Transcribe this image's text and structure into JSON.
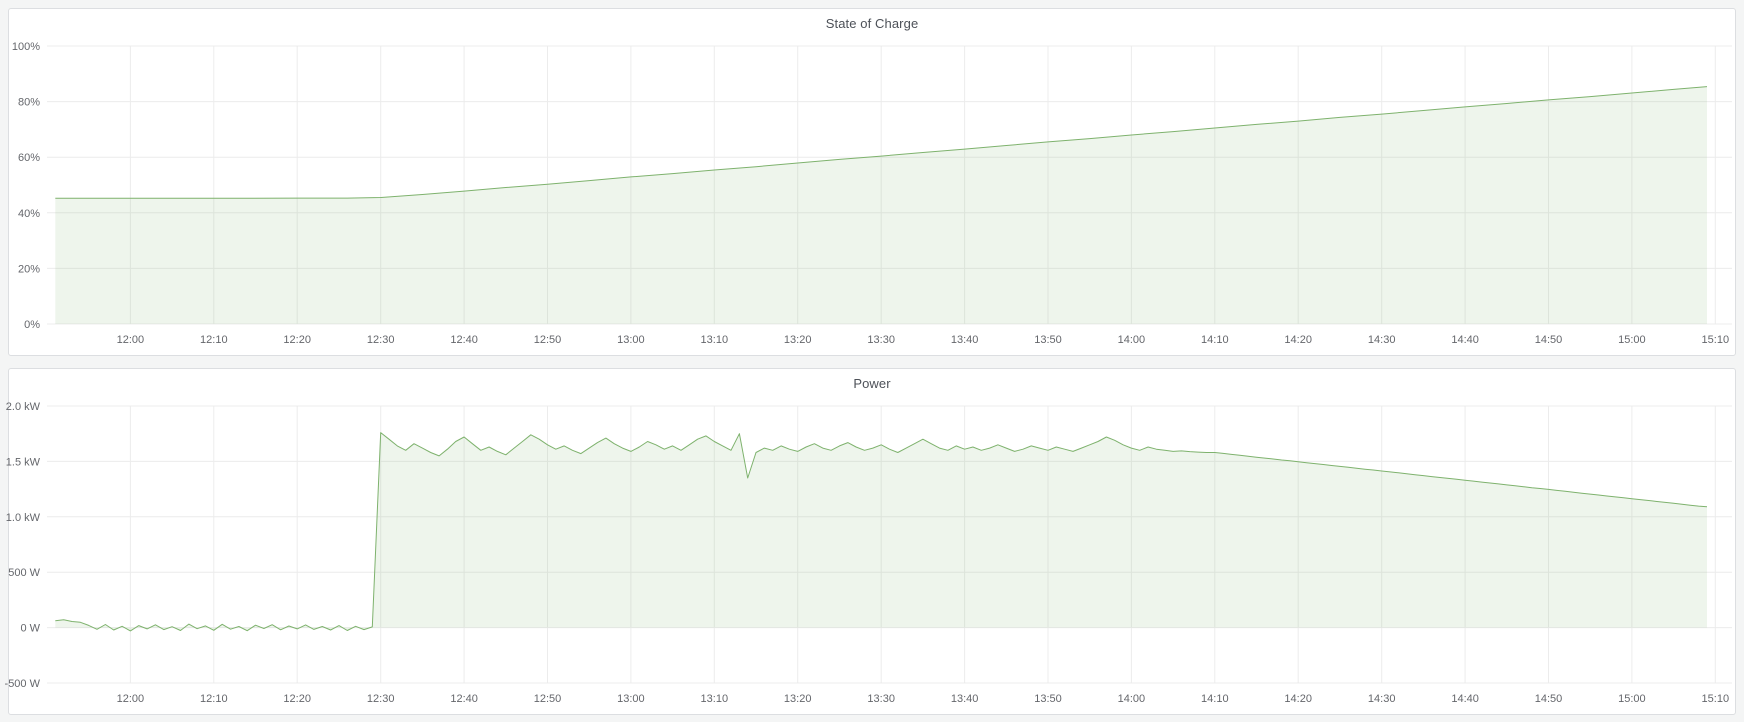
{
  "page": {
    "background_color": "#f4f5f5",
    "panel_background": "#ffffff",
    "panel_border_color": "#dcdee1",
    "accent_color": "#7eb26d"
  },
  "chart_data": [
    {
      "type": "area",
      "title": "State of Charge",
      "legend_position": "none",
      "grid": "on",
      "ylabel": "",
      "xlabel": "",
      "ylim": [
        0,
        100
      ],
      "xlim_minutes": [
        -10,
        192
      ],
      "grid_color": "#ececec",
      "tick_color": "#64666b",
      "y_ticks": {
        "labels": [
          "100%",
          "80%",
          "60%",
          "40%",
          "20%",
          "0%"
        ],
        "values": [
          100,
          80,
          60,
          40,
          20,
          0
        ]
      },
      "x_ticks": {
        "labels": [
          "12:00",
          "12:10",
          "12:20",
          "12:30",
          "12:40",
          "12:50",
          "13:00",
          "13:10",
          "13:20",
          "13:30",
          "13:40",
          "13:50",
          "14:00",
          "14:10",
          "14:20",
          "14:30",
          "14:40",
          "14:50",
          "15:00",
          "15:10"
        ],
        "minutes": [
          0,
          10,
          20,
          30,
          40,
          50,
          60,
          70,
          80,
          90,
          100,
          110,
          120,
          130,
          140,
          150,
          160,
          170,
          180,
          190
        ]
      },
      "series": [
        {
          "name": "state-of-charge",
          "unit": "%",
          "color": "#7eb26d",
          "fill_color": "rgba(126,178,109,0.13)",
          "fill_to": 0,
          "points": {
            "t": [
              -9,
              0,
              10,
              20,
              26,
              30,
              35,
              40,
              45,
              50,
              55,
              60,
              65,
              70,
              75,
              80,
              85,
              90,
              95,
              100,
              105,
              110,
              115,
              120,
              125,
              130,
              135,
              140,
              145,
              150,
              155,
              160,
              165,
              170,
              175,
              180,
              185,
              189
            ],
            "v": [
              45.2,
              45.2,
              45.2,
              45.3,
              45.3,
              45.5,
              46.6,
              47.8,
              49.1,
              50.3,
              51.6,
              52.9,
              54.1,
              55.4,
              56.6,
              57.9,
              59.2,
              60.4,
              61.7,
              62.9,
              64.2,
              65.5,
              66.7,
              68.0,
              69.2,
              70.5,
              71.8,
              73.0,
              74.3,
              75.5,
              76.8,
              78.1,
              79.3,
              80.6,
              81.8,
              83.1,
              84.4,
              85.4
            ]
          }
        }
      ]
    },
    {
      "type": "area",
      "title": "Power",
      "legend_position": "none",
      "grid": "on",
      "ylabel": "",
      "xlabel": "",
      "ylim": [
        -500,
        2000
      ],
      "xlim_minutes": [
        -10,
        192
      ],
      "grid_color": "#ececec",
      "tick_color": "#64666b",
      "y_ticks": {
        "labels": [
          "2.0 kW",
          "1.5 kW",
          "1.0 kW",
          "500 W",
          "0 W",
          "-500 W"
        ],
        "values": [
          2000,
          1500,
          1000,
          500,
          0,
          -500
        ]
      },
      "x_ticks": {
        "labels": [
          "12:00",
          "12:10",
          "12:20",
          "12:30",
          "12:40",
          "12:50",
          "13:00",
          "13:10",
          "13:20",
          "13:30",
          "13:40",
          "13:50",
          "14:00",
          "14:10",
          "14:20",
          "14:30",
          "14:40",
          "14:50",
          "15:00",
          "15:10"
        ],
        "minutes": [
          0,
          10,
          20,
          30,
          40,
          50,
          60,
          70,
          80,
          90,
          100,
          110,
          120,
          130,
          140,
          150,
          160,
          170,
          180,
          190
        ]
      },
      "series": [
        {
          "name": "power",
          "unit": "W",
          "color": "#7eb26d",
          "fill_color": "rgba(126,178,109,0.13)",
          "fill_to": 0,
          "points": {
            "t_start": -9,
            "t_step": 1,
            "v": [
              62,
              70,
              55,
              48,
              20,
              -15,
              28,
              -22,
              12,
              -30,
              18,
              -12,
              25,
              -18,
              8,
              -26,
              32,
              -10,
              15,
              -24,
              30,
              -14,
              10,
              -28,
              22,
              -8,
              26,
              -20,
              14,
              -12,
              24,
              -16,
              10,
              -22,
              18,
              -26,
              12,
              -18,
              6,
              1760,
              1700,
              1640,
              1600,
              1660,
              1620,
              1580,
              1550,
              1610,
              1680,
              1720,
              1660,
              1600,
              1630,
              1590,
              1560,
              1620,
              1680,
              1740,
              1700,
              1650,
              1610,
              1640,
              1600,
              1570,
              1620,
              1670,
              1710,
              1660,
              1620,
              1590,
              1630,
              1680,
              1650,
              1610,
              1640,
              1600,
              1650,
              1700,
              1730,
              1680,
              1640,
              1600,
              1750,
              1350,
              1580,
              1620,
              1600,
              1640,
              1610,
              1590,
              1630,
              1660,
              1620,
              1600,
              1640,
              1670,
              1630,
              1600,
              1620,
              1650,
              1610,
              1580,
              1620,
              1660,
              1700,
              1660,
              1620,
              1600,
              1640,
              1610,
              1630,
              1600,
              1620,
              1650,
              1620,
              1590,
              1610,
              1640,
              1620,
              1600,
              1630,
              1610,
              1590,
              1620,
              1650,
              1680,
              1720,
              1690,
              1650,
              1620,
              1600,
              1630,
              1610,
              1600,
              1590,
              1595,
              1588,
              1584,
              1580,
              1580,
              1572,
              1563,
              1555,
              1547,
              1538,
              1530,
              1522,
              1513,
              1505,
              1497,
              1488,
              1480,
              1472,
              1463,
              1455,
              1447,
              1438,
              1430,
              1422,
              1413,
              1405,
              1397,
              1388,
              1380,
              1372,
              1363,
              1355,
              1347,
              1338,
              1330,
              1322,
              1313,
              1305,
              1297,
              1288,
              1280,
              1272,
              1263,
              1255,
              1247,
              1238,
              1230,
              1222,
              1213,
              1205,
              1197,
              1188,
              1180,
              1172,
              1163,
              1155,
              1147,
              1138,
              1130,
              1122,
              1113,
              1105,
              1097,
              1090
            ]
          }
        }
      ]
    }
  ]
}
